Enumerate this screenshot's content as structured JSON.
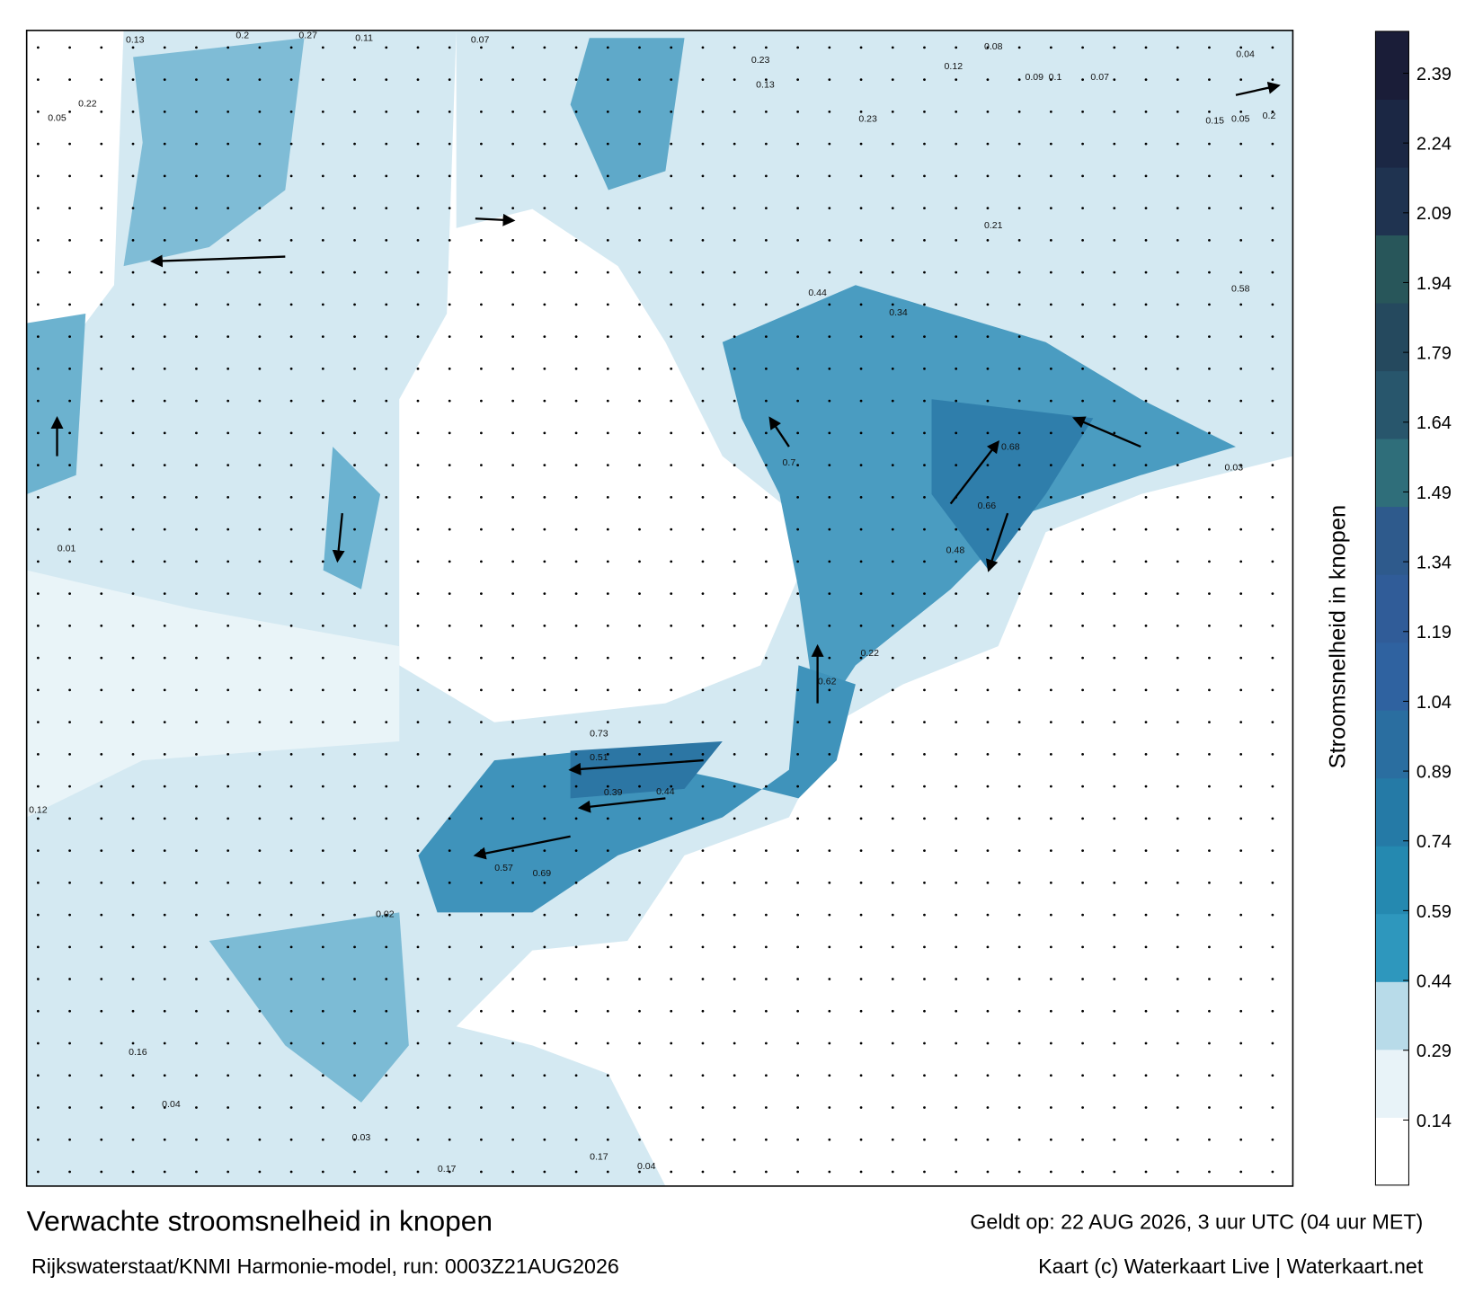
{
  "map": {
    "title": "Verwachte stroomsnelheid in knopen",
    "valid": "Geldt op: 22 AUG 2026, 3 uur UTC (04 uur MET)",
    "source": "Rijkswaterstaat/KNMI Harmonie-model, run: 0003Z21AUG2026",
    "credit": "Kaart (c) Waterkaart Live | Waterkaart.net",
    "colorbar": {
      "label": "Stroomsnelheid in knopen",
      "range": [
        0,
        2.48
      ],
      "ticks": [
        0.14,
        0.29,
        0.44,
        0.59,
        0.74,
        0.89,
        1.04,
        1.19,
        1.34,
        1.49,
        1.64,
        1.79,
        1.94,
        2.09,
        2.24,
        2.39
      ],
      "colors": [
        "#ffffff",
        "#e8f3f8",
        "#b8dbe9",
        "#2e97bd",
        "#2589b0",
        "#257aa6",
        "#2a6ea0",
        "#2f62a0",
        "#305c98",
        "#2e5a8c",
        "#2f6e7a",
        "#28566c",
        "#25495e",
        "#28565a",
        "#1f3350",
        "#1b2744",
        "#1a1d38"
      ]
    },
    "labels": [
      "0.13",
      "0.2",
      "0.27",
      "0.11",
      "0.07",
      "0.08",
      "0.12",
      "0.09",
      "0.1",
      "0.07",
      "0.04",
      "0.05",
      "0.22",
      "0.23",
      "0.13",
      "0.23",
      "0.15",
      "0.05",
      "0.2",
      "0.21",
      "0.44",
      "0.34",
      "0.58",
      "0.68",
      "0.66",
      "0.7",
      "0.62",
      "0.73",
      "0.51",
      "0.57",
      "0.69",
      "0.39",
      "0.44",
      "0.48",
      "0.22",
      "0.02",
      "0.03",
      "0.04",
      "0.16",
      "0.17",
      "0.04",
      "0.17",
      "0.12",
      "0.01",
      "0.03"
    ]
  }
}
